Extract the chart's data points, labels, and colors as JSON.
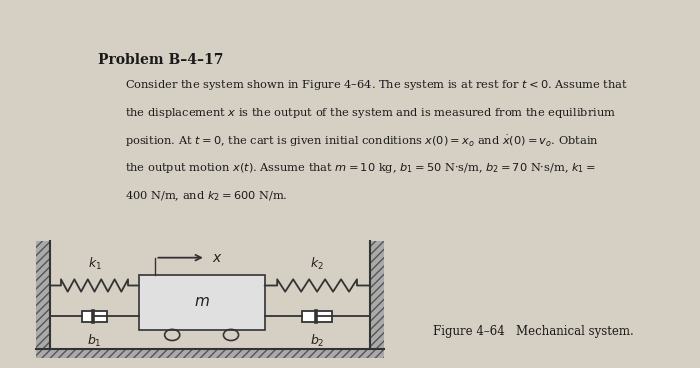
{
  "title": "Problem B–4–17",
  "bg_color": "#d6cfc4",
  "text_color": "#1a1a1a",
  "problem_text_lines": [
    "Consider the system shown in Figure 4–64. The system is at rest for $t < 0$. Assume that",
    "the displacement $x$ is the output of the system and is measured from the equilibrium",
    "position. At $t = 0$, the cart is given initial conditions $x(0) = x_o$ and $\\dot{x}(0) = v_o$. Obtain",
    "the output motion $x(t)$. Assume that $m = 10$ kg, $b_1 = 50$ N·s/m, $b_2 = 70$ N·s/m, $k_1 =$",
    "400 N/m, and $k_2 = 600$ N/m."
  ],
  "figure_caption": "Figure 4–64   Mechanical system.",
  "wall_color": "#888888",
  "hatch_color": "#888888",
  "spring_color": "#333333",
  "mass_color": "#e8e8e8",
  "damper_color": "#333333"
}
